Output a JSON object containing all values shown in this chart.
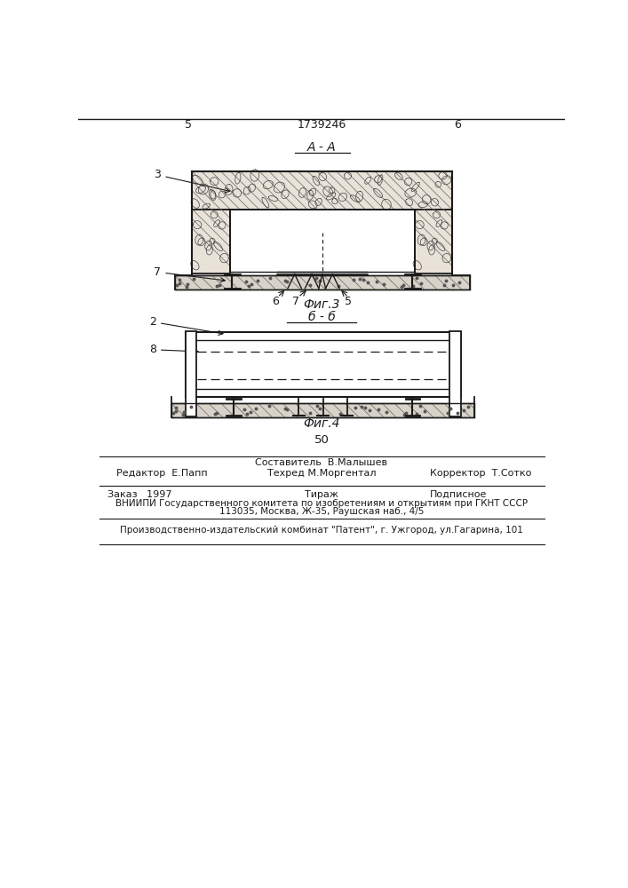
{
  "page_number_left": "5",
  "page_number_right": "6",
  "patent_number": "1739246",
  "fig3_label": "А - А",
  "fig3_caption": "Фиг.3",
  "fig4_label": "б - б",
  "fig4_caption": "Фиг.4",
  "page_center_number": "50",
  "credits_sestavitel": "Составитель  В.Малышев",
  "credits_redaktor": "Редактор  Е.Папп",
  "credits_tehred": "Техред М.Моргентал",
  "credits_korrektor": "Корректор  Т.Сотко",
  "credits_zakaz": "Заказ   1997",
  "credits_tirazh": "Тираж",
  "credits_podpisnoe": "Подписное",
  "credits_vniipи": "ВНИИПИ Государственного комитета по изобретениям и открытиям при ГКНТ СССР",
  "credits_addr": "113035, Москва, Ж-35, Раушская наб., 4/5",
  "credits_patent": "Производственно-издательский комбинат \"Патент\", г. Ужгород, ул.Гагарина, 101",
  "lc": "#1a1a1a",
  "concrete_fill": "#e8e2d8",
  "floor_fill": "#d8d2c8"
}
